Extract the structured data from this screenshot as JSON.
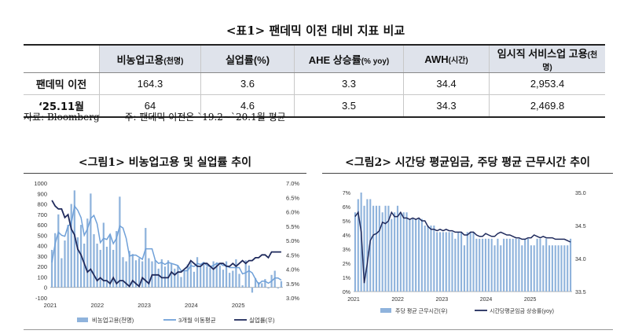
{
  "table": {
    "title": "<표1> 팬데믹 이전 대비 지표 비교",
    "headers": [
      "",
      "비농업고용",
      "실업률(%)",
      "AHE 상승률",
      "AWH",
      "임시직 서비스업 고용"
    ],
    "header_units": [
      "",
      "(천명)",
      "",
      "(% yoy)",
      "(시간)",
      "(천명)"
    ],
    "rows": [
      {
        "label": "팬데믹 이전",
        "values": [
          "164.3",
          "3.6",
          "3.3",
          "34.4",
          "2,953.4"
        ]
      },
      {
        "label": "‘25.11월",
        "values": [
          "64",
          "4.6",
          "3.5",
          "34.3",
          "2,469.8"
        ]
      }
    ],
    "source": "자료: Bloomberg",
    "note": "주: 팬데믹 이전은 `19.2~`20.1월 평균"
  },
  "chart_data": [
    {
      "type": "bar",
      "title": "<그림1> 비농업고용 및 실업률 추이",
      "x_ticks": [
        "2021",
        "2022",
        "2023",
        "2024",
        "2025"
      ],
      "x_range": [
        2021.0,
        2025.95
      ],
      "left_axis": {
        "min": -100,
        "max": 1000,
        "ticks": [
          -100,
          0,
          100,
          200,
          300,
          400,
          500,
          600,
          700,
          800,
          900,
          1000
        ]
      },
      "right_axis": {
        "min": 3.0,
        "max": 7.0,
        "ticks": [
          "7.0%",
          "6.5%",
          "6.0%",
          "5.5%",
          "5.0%",
          "4.5%",
          "4.0%",
          "3.5%",
          "3.0%"
        ]
      },
      "series": [
        {
          "name": "비농업고용(천명)",
          "axis": "left",
          "type": "bar",
          "color": "#8fb3dc",
          "values": [
            360,
            520,
            700,
            280,
            450,
            600,
            800,
            930,
            480,
            600,
            420,
            660,
            900,
            510,
            420,
            360,
            620,
            390,
            510,
            360,
            540,
            870,
            290,
            250,
            350,
            320,
            260,
            280,
            250,
            570,
            280,
            250,
            260,
            180,
            270,
            200,
            260,
            230,
            180,
            210,
            100,
            160,
            220,
            240,
            150,
            290,
            210,
            220,
            200,
            190,
            250,
            240,
            210,
            170,
            250,
            140,
            160,
            270,
            130,
            20,
            260,
            210,
            -50,
            90,
            50,
            40,
            80,
            -10,
            120,
            160,
            -10,
            60
          ]
        },
        {
          "name": "3개월 이동평균",
          "axis": "left",
          "type": "line",
          "color": "#6fa0d8",
          "values": [
            240,
            420,
            530,
            500,
            490,
            590,
            610,
            780,
            740,
            670,
            500,
            560,
            660,
            690,
            610,
            430,
            470,
            460,
            510,
            420,
            470,
            590,
            570,
            470,
            300,
            310,
            310,
            290,
            270,
            370,
            370,
            370,
            260,
            230,
            240,
            220,
            240,
            230,
            220,
            210,
            160,
            160,
            160,
            210,
            200,
            230,
            220,
            240,
            210,
            200,
            210,
            230,
            230,
            210,
            210,
            190,
            190,
            190,
            190,
            130,
            140,
            160,
            140,
            80,
            30,
            60,
            60,
            40,
            60,
            90,
            90,
            70
          ]
        },
        {
          "name": "실업률(우)",
          "axis": "right",
          "type": "line",
          "color": "#1f2a5c",
          "values": [
            6.4,
            6.2,
            6.1,
            6.1,
            5.8,
            5.9,
            5.4,
            5.2,
            4.7,
            4.5,
            4.2,
            3.9,
            4.0,
            3.8,
            3.6,
            3.7,
            3.6,
            3.6,
            3.5,
            3.7,
            3.5,
            3.6,
            3.6,
            3.5,
            3.4,
            3.6,
            3.5,
            3.4,
            3.7,
            3.6,
            3.5,
            3.8,
            3.8,
            3.8,
            3.7,
            3.7,
            3.7,
            3.9,
            3.8,
            3.9,
            3.9,
            4.0,
            4.1,
            4.3,
            4.2,
            4.1,
            4.1,
            4.2,
            4.2,
            4.1,
            4.0,
            4.1,
            4.2,
            4.2,
            4.1,
            4.1,
            4.2,
            4.1,
            4.2,
            4.3,
            4.2,
            4.3,
            4.3,
            4.4,
            4.4,
            4.5,
            4.5,
            4.4,
            4.6,
            4.6,
            4.6,
            4.6
          ]
        }
      ],
      "legend": [
        "비농업고용(천명)",
        "3개월 이동평균",
        "실업률(우)"
      ]
    },
    {
      "type": "bar",
      "title": "<그림2> 시간당 평균임금, 주당 평균 근무시간 추이",
      "x_ticks": [
        "2021",
        "2022",
        "2023",
        "2024",
        "2025"
      ],
      "x_range": [
        2021.0,
        2025.95
      ],
      "left_axis": {
        "min": 0,
        "max": 7,
        "ticks": [
          "7%",
          "6%",
          "5%",
          "4%",
          "3%",
          "2%",
          "1%",
          "0%"
        ]
      },
      "right_axis": {
        "min": 33.5,
        "max": 35.0,
        "ticks": [
          "35.0",
          "34.5",
          "34.0",
          "33.5"
        ]
      },
      "series": [
        {
          "name": "주당 평균 근무시간(우)",
          "axis": "right",
          "type": "bar",
          "color": "#8fb3dc",
          "values": [
            34.7,
            34.9,
            35.0,
            34.8,
            34.9,
            34.9,
            34.8,
            34.8,
            34.8,
            34.7,
            34.8,
            34.8,
            34.6,
            34.7,
            34.8,
            34.7,
            34.7,
            34.7,
            34.6,
            34.6,
            34.6,
            34.6,
            34.6,
            34.5,
            34.5,
            34.5,
            34.5,
            34.4,
            34.4,
            34.4,
            34.4,
            34.4,
            34.4,
            34.3,
            34.4,
            34.4,
            34.2,
            34.4,
            34.4,
            34.4,
            34.3,
            34.3,
            34.3,
            34.3,
            34.3,
            34.3,
            34.2,
            34.3,
            34.2,
            34.3,
            34.3,
            34.3,
            34.3,
            34.3,
            34.3,
            34.2,
            34.3,
            34.3,
            34.2,
            34.2,
            34.3,
            34.3,
            34.2,
            34.3,
            34.2,
            34.2,
            34.2,
            34.2,
            34.2,
            34.2,
            34.2,
            34.3
          ]
        },
        {
          "name": "시간당평균임금 상승률(yoy)",
          "axis": "left",
          "type": "line",
          "color": "#1f2a5c",
          "values": [
            5.3,
            5.6,
            4.2,
            0.6,
            2.0,
            3.6,
            4.0,
            4.1,
            4.3,
            4.9,
            4.8,
            5.0,
            5.6,
            5.3,
            5.3,
            5.6,
            5.2,
            5.2,
            5.1,
            5.2,
            5.1,
            5.2,
            5.0,
            5.0,
            4.6,
            4.4,
            4.4,
            4.3,
            4.4,
            4.3,
            4.4,
            4.3,
            4.3,
            4.2,
            4.2,
            4.2,
            4.0,
            4.0,
            4.2,
            4.2,
            4.0,
            3.9,
            3.9,
            4.1,
            4.0,
            3.9,
            3.9,
            4.1,
            4.2,
            4.1,
            4.0,
            4.0,
            3.9,
            3.8,
            3.8,
            3.7,
            3.7,
            3.8,
            3.8,
            4.0,
            3.9,
            3.8,
            3.9,
            3.8,
            3.8,
            3.8,
            3.7,
            3.7,
            3.7,
            3.7,
            3.6,
            3.5
          ]
        }
      ],
      "legend": [
        "주당 평균 근무시간(우)",
        "시간당평균임금 상승률(yoy)"
      ]
    }
  ]
}
